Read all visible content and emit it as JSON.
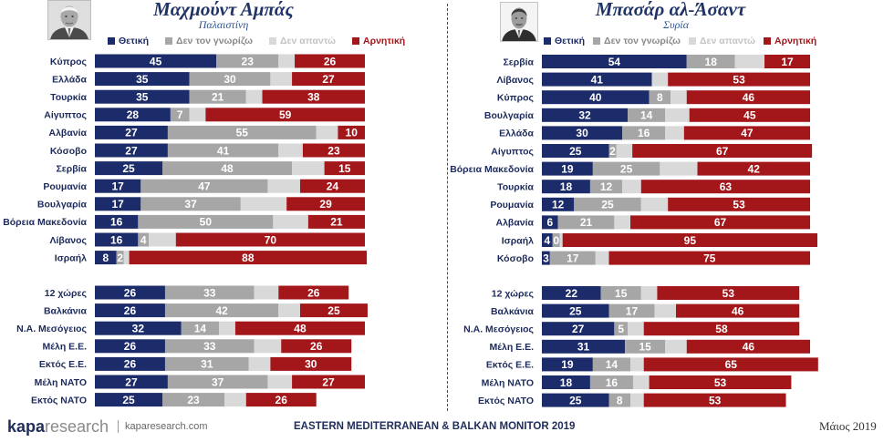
{
  "colors": {
    "positive": "#1c2c6a",
    "unknown": "#a6a6a6",
    "no_answer": "#d9d9d9",
    "negative": "#a3171b",
    "title": "#1f3366",
    "subtitle": "#2f5597",
    "label": "#1c2a5c",
    "footer_text": "#1f2d5a"
  },
  "icons": {
    "portrait_left": "portrait-photo",
    "portrait_right": "portrait-photo"
  },
  "chart_data": [
    {
      "type": "bar",
      "orientation": "horizontal",
      "stacked": true,
      "title": "Μαχμούντ Αμπάς",
      "subtitle": "Παλαιστίνη",
      "legend_position": "top",
      "grid": false,
      "categories": [
        "Κύπρος",
        "Ελλάδα",
        "Τουρκία",
        "Αίγυπτος",
        "Αλβανία",
        "Κόσοβο",
        "Σερβία",
        "Ρουμανία",
        "Βουλγαρία",
        "Βόρεια Μακεδονία",
        "Λίβανος",
        "Ισραήλ",
        "12 χώρες",
        "Βαλκάνια",
        "Ν.Α. Μεσόγειος",
        "Μέλη Ε.Ε.",
        "Εκτός Ε.Ε.",
        "Μέλη ΝΑΤΟ",
        "Εκτός ΝΑΤΟ"
      ],
      "series": [
        {
          "name": "Θετική",
          "values": [
            45,
            35,
            35,
            28,
            27,
            27,
            25,
            17,
            17,
            16,
            16,
            8,
            26,
            26,
            32,
            26,
            26,
            27,
            25
          ]
        },
        {
          "name": "Δεν τον γνωρίζω",
          "values": [
            23,
            30,
            21,
            7,
            55,
            41,
            48,
            47,
            37,
            50,
            4,
            2,
            33,
            42,
            14,
            33,
            31,
            37,
            23
          ]
        },
        {
          "name": "Δεν απαντώ",
          "values": [
            6,
            8,
            6,
            6,
            8,
            9,
            12,
            12,
            17,
            13,
            10,
            2,
            9,
            8,
            6,
            10,
            8,
            9,
            8
          ]
        },
        {
          "name": "Αρνητική",
          "values": [
            26,
            27,
            38,
            59,
            10,
            23,
            15,
            24,
            29,
            21,
            70,
            88,
            26,
            25,
            48,
            26,
            30,
            27,
            26
          ]
        }
      ]
    },
    {
      "type": "bar",
      "orientation": "horizontal",
      "stacked": true,
      "title": "Μπασάρ αλ-Άσαντ",
      "subtitle": "Συρία",
      "legend_position": "top",
      "grid": false,
      "categories": [
        "Σερβία",
        "Λίβανος",
        "Κύπρος",
        "Βουλγαρία",
        "Ελλάδα",
        "Αίγυπτος",
        "Βόρεια Μακεδονία",
        "Τουρκία",
        "Ρουμανία",
        "Αλβανία",
        "Ισραήλ",
        "Κόσοβο",
        "12 χώρες",
        "Βαλκάνια",
        "Ν.Α. Μεσόγειος",
        "Μέλη Ε.Ε.",
        "Εκτός Ε.Ε.",
        "Μέλη ΝΑΤΟ",
        "Εκτός ΝΑΤΟ"
      ],
      "series": [
        {
          "name": "Θετική",
          "values": [
            54,
            41,
            40,
            32,
            30,
            25,
            19,
            18,
            12,
            6,
            4,
            3,
            22,
            25,
            27,
            31,
            19,
            18,
            25
          ]
        },
        {
          "name": "Δεν τον γνωρίζω",
          "values": [
            18,
            null,
            8,
            14,
            16,
            2,
            25,
            12,
            25,
            21,
            0,
            17,
            15,
            17,
            5,
            15,
            14,
            16,
            8
          ]
        },
        {
          "name": "Δεν απαντώ",
          "values": [
            11,
            6,
            6,
            9,
            7,
            6,
            14,
            7,
            10,
            6,
            1,
            5,
            6,
            8,
            6,
            8,
            5,
            6,
            5
          ]
        },
        {
          "name": "Αρνητική",
          "values": [
            17,
            53,
            46,
            45,
            47,
            67,
            42,
            63,
            53,
            67,
            95,
            75,
            53,
            46,
            58,
            46,
            65,
            53,
            53
          ]
        }
      ]
    }
  ],
  "footer": {
    "brand_name": "kapa",
    "brand_suffix": "research",
    "website": "kaparesearch.com",
    "report_title": "EASTERN MEDITERRANEAN & BALKAN MONITOR 2019",
    "date": "Μάιος 2019"
  }
}
